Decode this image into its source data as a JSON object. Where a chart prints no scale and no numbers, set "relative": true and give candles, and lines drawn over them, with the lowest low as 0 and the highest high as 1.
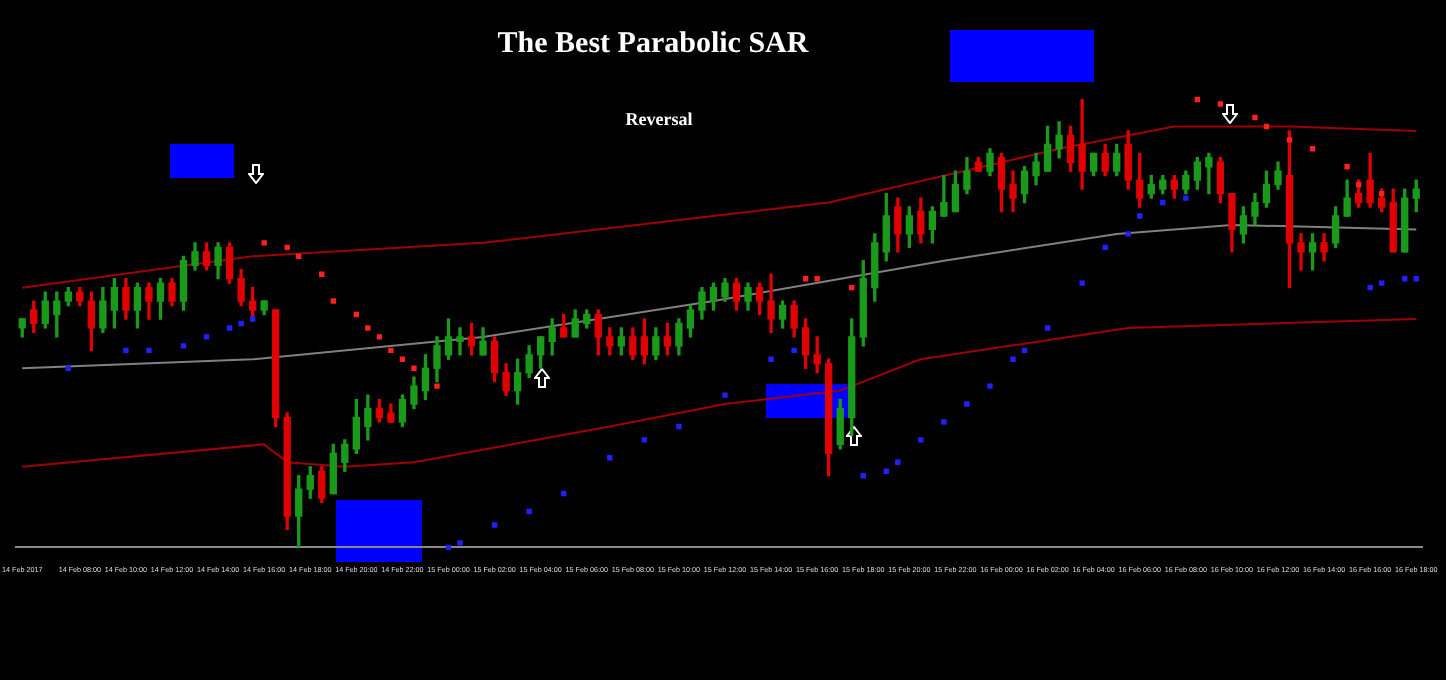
{
  "chart_data": {
    "type": "candlestick",
    "title": "The Best Parabolic SAR",
    "annotations": [
      "Reversal"
    ],
    "relative": true,
    "tick_labels": "x",
    "grid": false,
    "legend": false,
    "categories": [
      "14 Feb 2017",
      null,
      null,
      null,
      null,
      "14 Feb 08:00",
      null,
      null,
      null,
      "14 Feb 10:00",
      null,
      null,
      null,
      "14 Feb 12:00",
      null,
      null,
      null,
      "14 Feb 14:00",
      null,
      null,
      null,
      "14 Feb 16:00",
      null,
      null,
      null,
      "14 Feb 18:00",
      null,
      null,
      null,
      "14 Feb 20:00",
      null,
      null,
      null,
      "14 Feb 22:00",
      null,
      null,
      null,
      "15 Feb 00:00",
      null,
      null,
      null,
      "15 Feb 02:00",
      null,
      null,
      null,
      "15 Feb 04:00",
      null,
      null,
      null,
      "15 Feb 06:00",
      null,
      null,
      null,
      "15 Feb 08:00",
      null,
      null,
      null,
      "15 Feb 10:00",
      null,
      null,
      null,
      "15 Feb 12:00",
      null,
      null,
      null,
      "15 Feb 14:00",
      null,
      null,
      null,
      "15 Feb 16:00",
      null,
      null,
      null,
      "15 Feb 18:00",
      null,
      null,
      null,
      "15 Feb 20:00",
      null,
      null,
      null,
      "15 Feb 22:00",
      null,
      null,
      null,
      "16 Feb 00:00",
      null,
      null,
      null,
      "16 Feb 02:00",
      null,
      null,
      null,
      "16 Feb 04:00",
      null,
      null,
      null,
      "16 Feb 06:00",
      null,
      null,
      null,
      "16 Feb 08:00",
      null,
      null,
      null,
      "16 Feb 10:00",
      null,
      null,
      null,
      "16 Feb 12:00",
      null,
      null,
      null,
      "16 Feb 14:00",
      null,
      null,
      null,
      "16 Feb 16:00",
      null,
      null,
      null,
      "16 Feb 18:00"
    ],
    "ohlc": [
      [
        0.49,
        0.51,
        0.47,
        0.51
      ],
      [
        0.53,
        0.55,
        0.48,
        0.5
      ],
      [
        0.5,
        0.57,
        0.49,
        0.55
      ],
      [
        0.52,
        0.57,
        0.47,
        0.55
      ],
      [
        0.55,
        0.58,
        0.54,
        0.57
      ],
      [
        0.57,
        0.58,
        0.54,
        0.55
      ],
      [
        0.55,
        0.57,
        0.44,
        0.49
      ],
      [
        0.49,
        0.58,
        0.48,
        0.55
      ],
      [
        0.53,
        0.6,
        0.49,
        0.58
      ],
      [
        0.58,
        0.6,
        0.51,
        0.53
      ],
      [
        0.53,
        0.59,
        0.49,
        0.58
      ],
      [
        0.58,
        0.59,
        0.51,
        0.55
      ],
      [
        0.55,
        0.6,
        0.51,
        0.59
      ],
      [
        0.59,
        0.6,
        0.54,
        0.55
      ],
      [
        0.55,
        0.65,
        0.53,
        0.64
      ],
      [
        0.63,
        0.68,
        0.62,
        0.66
      ],
      [
        0.66,
        0.68,
        0.62,
        0.63
      ],
      [
        0.63,
        0.68,
        0.6,
        0.67
      ],
      [
        0.67,
        0.68,
        0.59,
        0.6
      ],
      [
        0.6,
        0.62,
        0.54,
        0.55
      ],
      [
        0.55,
        0.58,
        0.51,
        0.53
      ],
      [
        0.53,
        0.55,
        0.52,
        0.55
      ],
      [
        0.53,
        0.53,
        0.27,
        0.29
      ],
      [
        0.29,
        0.3,
        0.04,
        0.07
      ],
      [
        0.07,
        0.16,
        0.0,
        0.13
      ],
      [
        0.13,
        0.18,
        0.11,
        0.16
      ],
      [
        0.17,
        0.18,
        0.1,
        0.11
      ],
      [
        0.12,
        0.23,
        0.12,
        0.21
      ],
      [
        0.19,
        0.24,
        0.17,
        0.23
      ],
      [
        0.22,
        0.33,
        0.21,
        0.29
      ],
      [
        0.27,
        0.34,
        0.24,
        0.31
      ],
      [
        0.31,
        0.33,
        0.28,
        0.29
      ],
      [
        0.3,
        0.32,
        0.28,
        0.28
      ],
      [
        0.28,
        0.34,
        0.27,
        0.33
      ],
      [
        0.32,
        0.38,
        0.31,
        0.36
      ],
      [
        0.35,
        0.43,
        0.33,
        0.4
      ],
      [
        0.4,
        0.47,
        0.37,
        0.45
      ],
      [
        0.43,
        0.51,
        0.42,
        0.47
      ],
      [
        0.46,
        0.49,
        0.43,
        0.47
      ],
      [
        0.47,
        0.5,
        0.43,
        0.45
      ],
      [
        0.43,
        0.49,
        0.43,
        0.46
      ],
      [
        0.46,
        0.47,
        0.37,
        0.39
      ],
      [
        0.39,
        0.41,
        0.34,
        0.35
      ],
      [
        0.35,
        0.42,
        0.32,
        0.39
      ],
      [
        0.39,
        0.45,
        0.38,
        0.43
      ],
      [
        0.43,
        0.47,
        0.4,
        0.47
      ],
      [
        0.46,
        0.51,
        0.43,
        0.49
      ],
      [
        0.49,
        0.52,
        0.47,
        0.47
      ],
      [
        0.47,
        0.53,
        0.47,
        0.51
      ],
      [
        0.5,
        0.53,
        0.49,
        0.52
      ],
      [
        0.52,
        0.53,
        0.43,
        0.47
      ],
      [
        0.47,
        0.49,
        0.43,
        0.45
      ],
      [
        0.45,
        0.49,
        0.43,
        0.47
      ],
      [
        0.47,
        0.49,
        0.42,
        0.43
      ],
      [
        0.47,
        0.51,
        0.41,
        0.43
      ],
      [
        0.43,
        0.49,
        0.42,
        0.47
      ],
      [
        0.47,
        0.5,
        0.43,
        0.45
      ],
      [
        0.45,
        0.51,
        0.43,
        0.5
      ],
      [
        0.49,
        0.54,
        0.47,
        0.53
      ],
      [
        0.53,
        0.58,
        0.51,
        0.57
      ],
      [
        0.55,
        0.59,
        0.53,
        0.58
      ],
      [
        0.56,
        0.6,
        0.55,
        0.59
      ],
      [
        0.59,
        0.6,
        0.53,
        0.55
      ],
      [
        0.55,
        0.59,
        0.53,
        0.58
      ],
      [
        0.58,
        0.59,
        0.52,
        0.55
      ],
      [
        0.55,
        0.61,
        0.48,
        0.51
      ],
      [
        0.51,
        0.55,
        0.49,
        0.54
      ],
      [
        0.54,
        0.55,
        0.47,
        0.49
      ],
      [
        0.49,
        0.51,
        0.4,
        0.43
      ],
      [
        0.43,
        0.47,
        0.39,
        0.41
      ],
      [
        0.41,
        0.42,
        0.16,
        0.21
      ],
      [
        0.23,
        0.33,
        0.22,
        0.31
      ],
      [
        0.29,
        0.51,
        0.25,
        0.47
      ],
      [
        0.47,
        0.64,
        0.45,
        0.6
      ],
      [
        0.58,
        0.7,
        0.55,
        0.68
      ],
      [
        0.66,
        0.79,
        0.64,
        0.74
      ],
      [
        0.76,
        0.78,
        0.66,
        0.7
      ],
      [
        0.7,
        0.76,
        0.67,
        0.74
      ],
      [
        0.75,
        0.78,
        0.68,
        0.7
      ],
      [
        0.71,
        0.76,
        0.68,
        0.75
      ],
      [
        0.74,
        0.83,
        0.74,
        0.77
      ],
      [
        0.75,
        0.84,
        0.75,
        0.81
      ],
      [
        0.8,
        0.87,
        0.79,
        0.84
      ],
      [
        0.86,
        0.87,
        0.84,
        0.84
      ],
      [
        0.84,
        0.89,
        0.83,
        0.88
      ],
      [
        0.87,
        0.88,
        0.75,
        0.8
      ],
      [
        0.81,
        0.84,
        0.75,
        0.78
      ],
      [
        0.79,
        0.85,
        0.77,
        0.84
      ],
      [
        0.83,
        0.88,
        0.81,
        0.86
      ],
      [
        0.84,
        0.94,
        0.84,
        0.9
      ],
      [
        0.89,
        0.95,
        0.87,
        0.92
      ],
      [
        0.92,
        0.94,
        0.84,
        0.86
      ],
      [
        0.9,
        1.0,
        0.8,
        0.84
      ],
      [
        0.84,
        0.88,
        0.83,
        0.88
      ],
      [
        0.88,
        0.9,
        0.83,
        0.84
      ],
      [
        0.84,
        0.9,
        0.83,
        0.88
      ],
      [
        0.9,
        0.93,
        0.8,
        0.82
      ],
      [
        0.82,
        0.88,
        0.76,
        0.78
      ],
      [
        0.79,
        0.83,
        0.78,
        0.81
      ],
      [
        0.8,
        0.83,
        0.79,
        0.82
      ],
      [
        0.82,
        0.83,
        0.78,
        0.8
      ],
      [
        0.8,
        0.84,
        0.79,
        0.83
      ],
      [
        0.82,
        0.87,
        0.8,
        0.86
      ],
      [
        0.85,
        0.88,
        0.79,
        0.87
      ],
      [
        0.86,
        0.87,
        0.77,
        0.79
      ],
      [
        0.79,
        0.79,
        0.66,
        0.71
      ],
      [
        0.7,
        0.76,
        0.68,
        0.74
      ],
      [
        0.74,
        0.79,
        0.72,
        0.77
      ],
      [
        0.77,
        0.84,
        0.76,
        0.81
      ],
      [
        0.81,
        0.86,
        0.8,
        0.84
      ],
      [
        0.83,
        0.93,
        0.58,
        0.68
      ],
      [
        0.68,
        0.7,
        0.62,
        0.66
      ],
      [
        0.66,
        0.7,
        0.62,
        0.68
      ],
      [
        0.68,
        0.7,
        0.64,
        0.66
      ],
      [
        0.68,
        0.76,
        0.67,
        0.74
      ],
      [
        0.74,
        0.82,
        0.74,
        0.78
      ],
      [
        0.79,
        0.82,
        0.76,
        0.77
      ],
      [
        0.82,
        0.88,
        0.76,
        0.77
      ],
      [
        0.78,
        0.8,
        0.75,
        0.76
      ],
      [
        0.77,
        0.8,
        0.66,
        0.66
      ],
      [
        0.66,
        0.8,
        0.66,
        0.78
      ],
      [
        0.78,
        0.82,
        0.75,
        0.8
      ]
    ],
    "colors": [
      "#1a9a1a",
      "#e00000",
      "#1a9a1a",
      "#1a9a1a",
      "#1a9a1a",
      "#e00000",
      "#e00000",
      "#1a9a1a",
      "#1a9a1a",
      "#e00000",
      "#1a9a1a",
      "#e00000",
      "#1a9a1a",
      "#e00000",
      "#1a9a1a",
      "#1a9a1a",
      "#e00000",
      "#1a9a1a",
      "#e00000",
      "#e00000",
      "#e00000",
      "#1a9a1a",
      "#e00000",
      "#e00000",
      "#1a9a1a",
      "#1a9a1a",
      "#e00000",
      "#1a9a1a",
      "#1a9a1a",
      "#1a9a1a",
      "#1a9a1a",
      "#e00000",
      "#e00000",
      "#1a9a1a",
      "#1a9a1a",
      "#1a9a1a",
      "#1a9a1a",
      "#1a9a1a",
      "#1a9a1a",
      "#e00000",
      "#1a9a1a",
      "#e00000",
      "#e00000",
      "#1a9a1a",
      "#1a9a1a",
      "#1a9a1a",
      "#1a9a1a",
      "#e00000",
      "#1a9a1a",
      "#1a9a1a",
      "#e00000",
      "#e00000",
      "#1a9a1a",
      "#e00000",
      "#e00000",
      "#1a9a1a",
      "#e00000",
      "#1a9a1a",
      "#1a9a1a",
      "#1a9a1a",
      "#1a9a1a",
      "#1a9a1a",
      "#e00000",
      "#1a9a1a",
      "#e00000",
      "#e00000",
      "#1a9a1a",
      "#e00000",
      "#e00000",
      "#e00000",
      "#e00000",
      "#1a9a1a",
      "#1a9a1a",
      "#1a9a1a",
      "#1a9a1a",
      "#1a9a1a",
      "#e00000",
      "#1a9a1a",
      "#e00000",
      "#1a9a1a",
      "#1a9a1a",
      "#1a9a1a",
      "#1a9a1a",
      "#e00000",
      "#1a9a1a",
      "#e00000",
      "#e00000",
      "#1a9a1a",
      "#1a9a1a",
      "#1a9a1a",
      "#1a9a1a",
      "#e00000",
      "#e00000",
      "#1a9a1a",
      "#e00000",
      "#1a9a1a",
      "#e00000",
      "#e00000",
      "#1a9a1a",
      "#1a9a1a",
      "#e00000",
      "#1a9a1a",
      "#1a9a1a",
      "#1a9a1a",
      "#e00000",
      "#e00000",
      "#1a9a1a",
      "#1a9a1a",
      "#1a9a1a",
      "#1a9a1a",
      "#e00000",
      "#e00000",
      "#1a9a1a",
      "#e00000",
      "#1a9a1a",
      "#1a9a1a",
      "#e00000",
      "#e00000",
      "#e00000",
      "#e00000",
      "#1a9a1a",
      "#1a9a1a"
    ],
    "series": [
      {
        "type": "line",
        "color": "#a00000",
        "values": [
          0.58,
          null,
          null,
          null,
          null,
          null,
          null,
          null,
          null,
          null,
          null,
          null,
          null,
          null,
          null,
          null,
          null,
          null,
          null,
          null,
          0.65,
          null,
          null,
          null,
          null,
          null,
          null,
          null,
          null,
          null,
          null,
          null,
          null,
          null,
          null,
          null,
          null,
          null,
          null,
          null,
          0.68,
          null,
          null,
          null,
          null,
          null,
          null,
          null,
          null,
          null,
          null,
          null,
          null,
          null,
          null,
          null,
          null,
          null,
          null,
          null,
          0.74,
          null,
          null,
          null,
          null,
          null,
          null,
          null,
          null,
          null,
          0.77,
          null,
          null,
          null,
          null,
          null,
          null,
          null,
          null,
          null,
          0.83,
          null,
          null,
          null,
          null,
          null,
          null,
          null,
          null,
          null,
          0.89,
          null,
          null,
          null,
          null,
          null,
          null,
          null,
          null,
          null,
          0.94,
          null,
          null,
          null,
          null,
          null,
          null,
          null,
          null,
          null,
          0.94,
          null,
          null,
          null,
          null,
          null,
          null,
          null,
          null,
          null,
          null,
          0.93
        ]
      },
      {
        "type": "line",
        "color": "#808080",
        "values": [
          0.4,
          null,
          null,
          null,
          null,
          null,
          null,
          null,
          null,
          null,
          null,
          null,
          null,
          null,
          null,
          null,
          null,
          null,
          null,
          null,
          0.42,
          null,
          null,
          null,
          null,
          null,
          null,
          null,
          null,
          null,
          null,
          null,
          null,
          null,
          null,
          null,
          null,
          null,
          null,
          null,
          0.47,
          null,
          null,
          null,
          null,
          null,
          null,
          null,
          null,
          null,
          null,
          null,
          null,
          null,
          null,
          null,
          null,
          null,
          null,
          null,
          0.55,
          null,
          null,
          null,
          null,
          null,
          null,
          null,
          null,
          null,
          null,
          null,
          null,
          null,
          null,
          null,
          null,
          null,
          null,
          null,
          0.64,
          null,
          null,
          null,
          null,
          null,
          null,
          null,
          null,
          null,
          null,
          null,
          null,
          null,
          null,
          0.7,
          null,
          null,
          null,
          null,
          null,
          null,
          null,
          null,
          null,
          0.72,
          null,
          null,
          null,
          null,
          null,
          null,
          null,
          null,
          null,
          null,
          null,
          null,
          null,
          null,
          null,
          0.71
        ]
      },
      {
        "type": "line",
        "color": "#a00000",
        "values": [
          0.18,
          null,
          null,
          null,
          null,
          null,
          null,
          null,
          null,
          null,
          null,
          null,
          null,
          null,
          null,
          null,
          null,
          null,
          null,
          null,
          null,
          0.23,
          null,
          0.19,
          null,
          null,
          null,
          null,
          0.18,
          null,
          null,
          null,
          null,
          null,
          0.19,
          null,
          null,
          null,
          null,
          null,
          null,
          null,
          null,
          null,
          null,
          null,
          null,
          null,
          null,
          null,
          null,
          0.27,
          null,
          null,
          null,
          null,
          null,
          null,
          null,
          null,
          null,
          0.32,
          null,
          null,
          null,
          null,
          null,
          null,
          null,
          null,
          null,
          0.35,
          null,
          null,
          null,
          null,
          null,
          null,
          0.42,
          null,
          null,
          null,
          null,
          null,
          null,
          null,
          null,
          null,
          null,
          null,
          null,
          null,
          null,
          null,
          null,
          null,
          0.49,
          null,
          null,
          null,
          null,
          null,
          null,
          null,
          null,
          null,
          null,
          null,
          null,
          null,
          null,
          null,
          null,
          null,
          null,
          null,
          null,
          null,
          null,
          null,
          null,
          0.51
        ]
      },
      {
        "type": "scatter",
        "color": "#ff2020",
        "marker": "square",
        "values": [
          null,
          null,
          null,
          null,
          null,
          null,
          null,
          null,
          null,
          null,
          null,
          null,
          null,
          null,
          null,
          null,
          null,
          null,
          null,
          null,
          null,
          0.68,
          null,
          0.67,
          0.65,
          null,
          0.61,
          0.55,
          null,
          0.52,
          0.49,
          0.47,
          0.44,
          0.42,
          0.4,
          null,
          0.36,
          null,
          null,
          null,
          null,
          null,
          null,
          null,
          null,
          null,
          null,
          null,
          null,
          null,
          null,
          null,
          null,
          null,
          null,
          null,
          null,
          null,
          null,
          null,
          null,
          null,
          null,
          null,
          null,
          null,
          null,
          null,
          0.6,
          0.6,
          null,
          null,
          0.58,
          null,
          null,
          null,
          null,
          null,
          null,
          null,
          null,
          null,
          null,
          null,
          null,
          null,
          null,
          null,
          null,
          null,
          null,
          null,
          null,
          null,
          null,
          null,
          null,
          null,
          null,
          null,
          null,
          null,
          1.0,
          null,
          0.99,
          null,
          null,
          0.96,
          0.94,
          null,
          0.91,
          null,
          0.89,
          null,
          null,
          0.85,
          0.81,
          null,
          0.79,
          null,
          null,
          null
        ]
      },
      {
        "type": "scatter",
        "color": "#2020ff",
        "marker": "square",
        "values": [
          null,
          null,
          null,
          null,
          0.4,
          null,
          null,
          null,
          null,
          0.44,
          null,
          0.44,
          null,
          null,
          0.45,
          null,
          0.47,
          null,
          0.49,
          0.5,
          0.51,
          null,
          null,
          null,
          null,
          null,
          null,
          null,
          null,
          null,
          null,
          null,
          null,
          null,
          null,
          null,
          null,
          0.0,
          0.01,
          null,
          null,
          0.05,
          null,
          null,
          0.08,
          null,
          null,
          0.12,
          null,
          null,
          null,
          0.2,
          null,
          null,
          0.24,
          null,
          null,
          0.27,
          null,
          null,
          null,
          0.34,
          null,
          null,
          null,
          0.42,
          null,
          0.44,
          null,
          null,
          null,
          null,
          null,
          0.16,
          null,
          0.17,
          0.19,
          null,
          0.24,
          null,
          0.28,
          null,
          0.32,
          null,
          0.36,
          null,
          0.42,
          0.44,
          null,
          0.49,
          null,
          null,
          0.59,
          null,
          0.67,
          null,
          0.7,
          0.74,
          null,
          0.77,
          null,
          0.78,
          null,
          null,
          null,
          null,
          null,
          null,
          null,
          null,
          null,
          null,
          null,
          null,
          null,
          null,
          null,
          0.58,
          0.59,
          null,
          0.6,
          0.6
        ]
      }
    ]
  }
}
